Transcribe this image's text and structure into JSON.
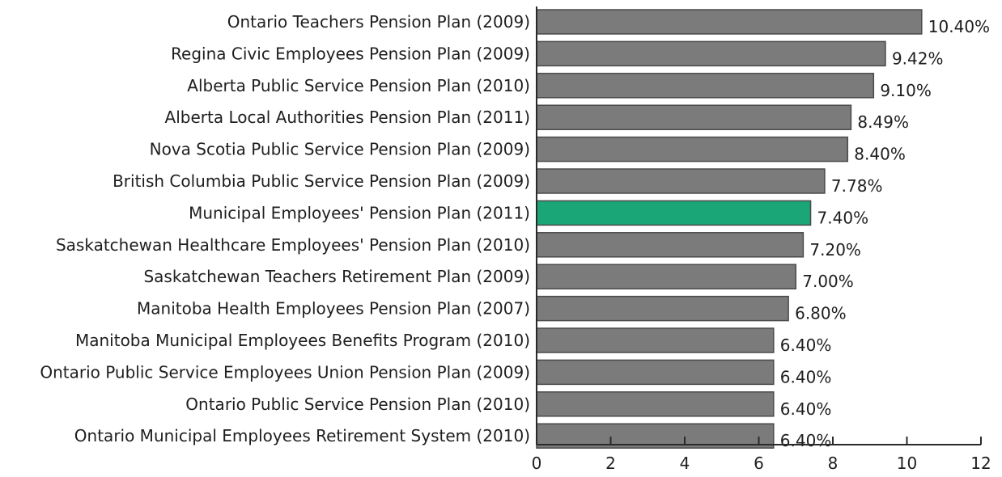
{
  "chart_data": {
    "type": "bar",
    "orientation": "horizontal",
    "title": "",
    "xlabel": "",
    "ylabel": "",
    "xlim": [
      0,
      12
    ],
    "xticks": [
      0,
      2,
      4,
      6,
      8,
      10,
      12
    ],
    "grid": false,
    "legend": "none",
    "colors": {
      "default": "#7b7b7b",
      "highlight": "#1aa676"
    },
    "categories": [
      "Ontario Teachers Pension Plan (2009)",
      "Regina Civic Employees Pension Plan (2009)",
      "Alberta Public Service Pension Plan (2010)",
      "Alberta Local Authorities Pension Plan (2011)",
      "Nova Scotia Public Service Pension Plan (2009)",
      "British Columbia Public Service Pension Plan (2009)",
      "Municipal Employees' Pension Plan (2011)",
      "Saskatchewan Healthcare Employees' Pension Plan (2010)",
      "Saskatchewan Teachers Retirement Plan (2009)",
      "Manitoba Health Employees Pension Plan (2007)",
      "Manitoba Municipal Employees Benefits Program (2010)",
      "Ontario Public Service Employees Union Pension Plan (2009)",
      "Ontario Public Service Pension Plan (2010)",
      "Ontario Municipal Employees Retirement System (2010)"
    ],
    "values": [
      10.4,
      9.42,
      9.1,
      8.49,
      8.4,
      7.78,
      7.4,
      7.2,
      7.0,
      6.8,
      6.4,
      6.4,
      6.4,
      6.4
    ],
    "value_labels": [
      "10.40%",
      "9.42%",
      "9.10%",
      "8.49%",
      "8.40%",
      "7.78%",
      "7.40%",
      "7.20%",
      "7.00%",
      "6.80%",
      "6.40%",
      "6.40%",
      "6.40%",
      "6.40%"
    ],
    "highlight_index": 6
  }
}
